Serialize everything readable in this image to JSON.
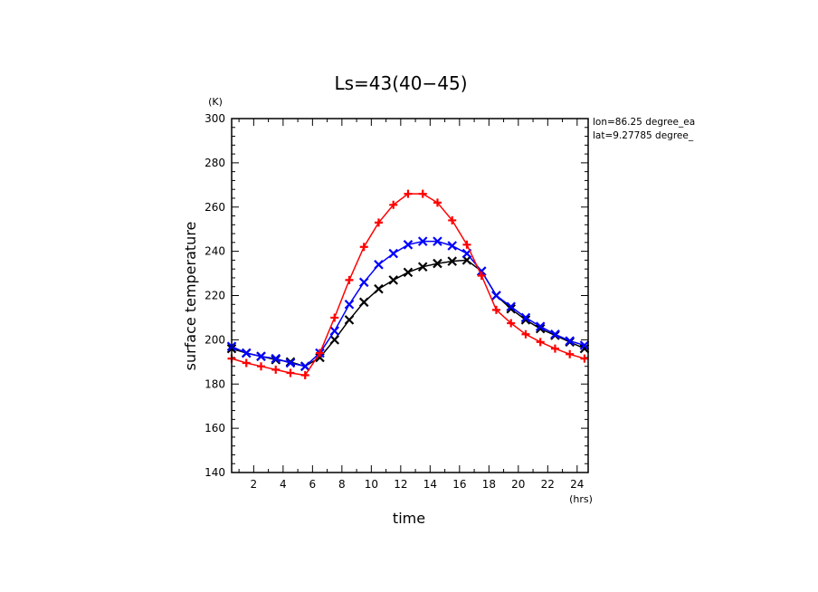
{
  "chart_data": {
    "type": "line",
    "title": "Ls=43(40−45)",
    "xlabel": "time",
    "ylabel": "surface temperature",
    "x_unit": "(hrs)",
    "y_unit": "(K)",
    "xlim": [
      0.5,
      24.75
    ],
    "ylim": [
      140,
      300
    ],
    "xticks": [
      2,
      4,
      6,
      8,
      10,
      12,
      14,
      16,
      18,
      20,
      22,
      24
    ],
    "yticks": [
      140,
      160,
      180,
      200,
      220,
      240,
      260,
      280,
      300
    ],
    "annotations": [
      "lon=86.25 degree_ea",
      "lat=9.27785 degree_"
    ],
    "x": [
      0.5,
      1.5,
      2.5,
      3.5,
      4.5,
      5.5,
      6.5,
      7.5,
      8.5,
      9.5,
      10.5,
      11.5,
      12.5,
      13.5,
      14.5,
      15.5,
      16.5,
      17.5,
      18.5,
      19.5,
      20.5,
      21.5,
      22.5,
      23.5,
      24.5
    ],
    "series": [
      {
        "color": "#ff0000",
        "marker": "+",
        "values": [
          191.5,
          189.5,
          188,
          186.5,
          185,
          184,
          194,
          210,
          227,
          242,
          253,
          261,
          266,
          266,
          262,
          254,
          243,
          229,
          213.5,
          207.5,
          202.5,
          199,
          196,
          193.5,
          191.5
        ]
      },
      {
        "color": "#0000ff",
        "marker": "x",
        "values": [
          197,
          194,
          192.5,
          191.5,
          189.5,
          188,
          194,
          204,
          216,
          226,
          234,
          239,
          243,
          244.5,
          244.5,
          242.5,
          239,
          231,
          220,
          215,
          210,
          206,
          202.5,
          199.5,
          197.5
        ]
      },
      {
        "color": "#000000",
        "marker": "x",
        "values": [
          196,
          194,
          192.5,
          191,
          190,
          188,
          192,
          200,
          209,
          217,
          223,
          227,
          230.5,
          233,
          234.5,
          235.5,
          236,
          231,
          220,
          214,
          209,
          205,
          202,
          199,
          196
        ]
      }
    ]
  }
}
